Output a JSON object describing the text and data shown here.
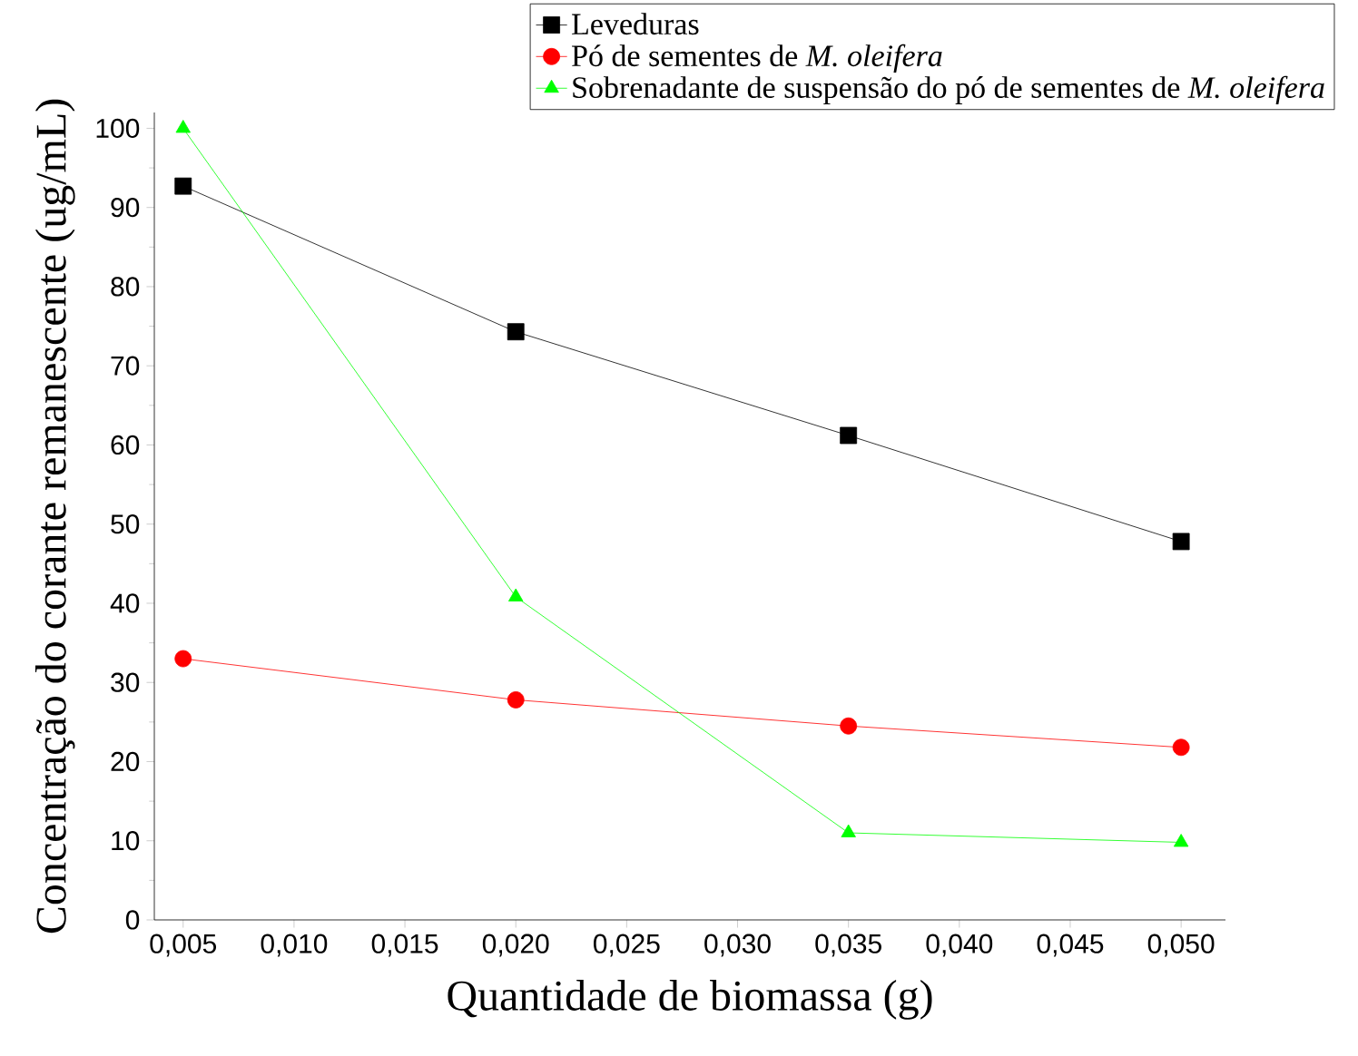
{
  "chart_data": {
    "type": "line",
    "xlabel": "Quantidade de biomassa (g)",
    "ylabel": "Concentração do corante remanescente (ug/mL)",
    "x": [
      0.005,
      0.02,
      0.035,
      0.05
    ],
    "series": [
      {
        "name": "Leveduras",
        "color": "#000000",
        "marker": "square",
        "values": [
          92.7,
          74.3,
          61.2,
          47.8
        ]
      },
      {
        "name": "Pó de sementes de *M. oleifera*",
        "color": "#ff0000",
        "marker": "circle",
        "values": [
          33.0,
          27.8,
          24.5,
          21.8
        ]
      },
      {
        "name": "Sobrenadante de suspensão do pó de sementes de *M. oleifera*",
        "color": "#00ff00",
        "marker": "triangle",
        "values": [
          100.0,
          40.8,
          11.0,
          9.8
        ]
      }
    ],
    "xlim": [
      0.0037,
      0.052
    ],
    "ylim": [
      0,
      102
    ],
    "xticks": [
      {
        "value": 0.005,
        "label": "0,005"
      },
      {
        "value": 0.01,
        "label": "0,010"
      },
      {
        "value": 0.015,
        "label": "0,015"
      },
      {
        "value": 0.02,
        "label": "0,020"
      },
      {
        "value": 0.025,
        "label": "0,025"
      },
      {
        "value": 0.03,
        "label": "0,030"
      },
      {
        "value": 0.035,
        "label": "0,035"
      },
      {
        "value": 0.04,
        "label": "0,040"
      },
      {
        "value": 0.045,
        "label": "0,045"
      },
      {
        "value": 0.05,
        "label": "0,050"
      }
    ],
    "yticks": [
      0,
      10,
      20,
      30,
      40,
      50,
      60,
      70,
      80,
      90,
      100
    ],
    "legend": "top right",
    "line_style": "solid"
  }
}
